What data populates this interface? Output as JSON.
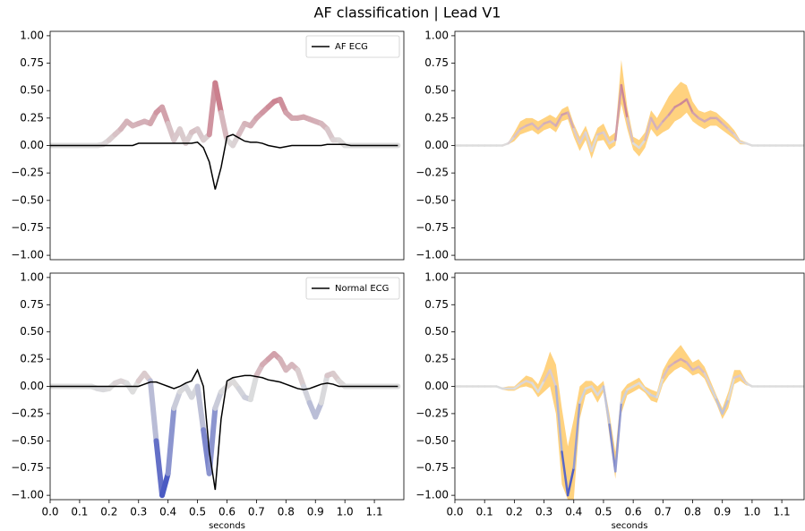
{
  "title": "AF classification | Lead V1",
  "chart_data": [
    {
      "type": "line",
      "xlim": [
        0,
        1.2
      ],
      "ylim": [
        -1.04,
        1.04
      ],
      "yticks": [
        {
          "value": 1,
          "label": "1.00"
        },
        {
          "value": 0.75,
          "label": "0.75"
        },
        {
          "value": 0.5,
          "label": "0.50"
        },
        {
          "value": 0.25,
          "label": "0.25"
        },
        {
          "value": 0,
          "label": "0.00"
        },
        {
          "value": -0.25,
          "label": "−0.25"
        },
        {
          "value": -0.5,
          "label": "−0.50"
        },
        {
          "value": -0.75,
          "label": "−0.75"
        },
        {
          "value": -1,
          "label": "−1.00"
        }
      ],
      "legend": "upper right",
      "x": [
        0,
        0.02,
        0.04,
        0.06,
        0.08,
        0.1,
        0.12,
        0.14,
        0.16,
        0.18,
        0.2,
        0.22,
        0.24,
        0.26,
        0.28,
        0.3,
        0.32,
        0.34,
        0.36,
        0.38,
        0.4,
        0.42,
        0.44,
        0.46,
        0.48,
        0.5,
        0.52,
        0.54,
        0.56,
        0.58,
        0.6,
        0.62,
        0.64,
        0.66,
        0.68,
        0.7,
        0.72,
        0.74,
        0.76,
        0.78,
        0.8,
        0.82,
        0.84,
        0.86,
        0.88,
        0.9,
        0.92,
        0.94,
        0.96,
        0.98,
        1,
        1.02,
        1.04,
        1.06,
        1.08,
        1.1,
        1.12,
        1.14,
        1.16,
        1.18
      ],
      "series": [
        {
          "colormap": "coolwarm",
          "values": [
            0,
            0,
            0,
            0,
            0,
            0,
            0,
            0,
            0,
            0.01,
            0.05,
            0.1,
            0.15,
            0.22,
            0.18,
            0.2,
            0.22,
            0.2,
            0.3,
            0.35,
            0.2,
            0.05,
            0.15,
            0.02,
            0.12,
            0.15,
            0.05,
            0.1,
            0.57,
            0.3,
            0.05,
            0,
            0.1,
            0.2,
            0.18,
            0.25,
            0.3,
            0.35,
            0.4,
            0.42,
            0.3,
            0.25,
            0.25,
            0.26,
            0.24,
            0.22,
            0.2,
            0.15,
            0.05,
            0.05,
            0,
            0,
            0,
            0,
            0,
            0,
            0,
            0,
            0,
            0
          ]
        },
        {
          "name": "AF ECG",
          "color": "#000000",
          "values": [
            0,
            0,
            0,
            0,
            0,
            0,
            0,
            0,
            0,
            0,
            0,
            0,
            0,
            0,
            0,
            0.02,
            0.02,
            0.02,
            0.02,
            0.02,
            0.02,
            0.02,
            0.02,
            0.02,
            0.02,
            0.03,
            -0.02,
            -0.15,
            -0.4,
            -0.2,
            0.08,
            0.1,
            0.07,
            0.04,
            0.03,
            0.03,
            0.02,
            0,
            -0.01,
            -0.02,
            -0.01,
            0,
            0,
            0,
            0,
            0,
            0,
            0.01,
            0.01,
            0.01,
            0.01,
            0,
            0,
            0,
            0,
            0,
            0,
            0,
            0,
            0
          ]
        }
      ]
    },
    {
      "type": "line",
      "xlim": [
        0,
        1.175
      ],
      "ylim": [
        -1.04,
        1.04
      ],
      "yticks": [
        {
          "value": 1,
          "label": "1.00"
        },
        {
          "value": 0.75,
          "label": "0.75"
        },
        {
          "value": 0.5,
          "label": "0.50"
        },
        {
          "value": 0.25,
          "label": "0.25"
        },
        {
          "value": 0,
          "label": "0.00"
        },
        {
          "value": -0.25,
          "label": "−0.25"
        },
        {
          "value": -0.5,
          "label": "−0.50"
        },
        {
          "value": -0.75,
          "label": "−0.75"
        },
        {
          "value": -1,
          "label": "−1.00"
        }
      ],
      "x": [
        0,
        0.02,
        0.04,
        0.06,
        0.08,
        0.1,
        0.12,
        0.14,
        0.16,
        0.18,
        0.2,
        0.22,
        0.24,
        0.26,
        0.28,
        0.3,
        0.32,
        0.34,
        0.36,
        0.38,
        0.4,
        0.42,
        0.44,
        0.46,
        0.48,
        0.5,
        0.52,
        0.54,
        0.56,
        0.58,
        0.6,
        0.62,
        0.64,
        0.66,
        0.68,
        0.7,
        0.72,
        0.74,
        0.76,
        0.78,
        0.8,
        0.82,
        0.84,
        0.86,
        0.88,
        0.9,
        0.92,
        0.94,
        0.96,
        0.98,
        1,
        1.02,
        1.04,
        1.06,
        1.08,
        1.1,
        1.12,
        1.14,
        1.16,
        1.18
      ],
      "series": [
        {
          "colormap": "coolwarm",
          "band_color": "#ffd27f",
          "values": [
            0,
            0,
            0,
            0,
            0,
            0,
            0,
            0,
            0,
            0.02,
            0.08,
            0.15,
            0.18,
            0.2,
            0.15,
            0.2,
            0.22,
            0.18,
            0.28,
            0.3,
            0.15,
            0.02,
            0.12,
            -0.05,
            0.1,
            0.12,
            0.02,
            0.05,
            0.55,
            0.25,
            0.02,
            -0.02,
            0.05,
            0.25,
            0.15,
            0.22,
            0.28,
            0.35,
            0.38,
            0.42,
            0.3,
            0.25,
            0.22,
            0.25,
            0.25,
            0.2,
            0.15,
            0.1,
            0.03,
            0.02,
            0,
            0,
            0,
            0,
            0,
            0,
            0,
            0,
            0,
            0
          ],
          "upper": [
            0,
            0,
            0,
            0,
            0,
            0,
            0,
            0,
            0,
            0.03,
            0.12,
            0.22,
            0.25,
            0.25,
            0.22,
            0.25,
            0.28,
            0.25,
            0.33,
            0.36,
            0.2,
            0.08,
            0.18,
            0.03,
            0.16,
            0.2,
            0.08,
            0.12,
            0.78,
            0.35,
            0.08,
            0.05,
            0.12,
            0.32,
            0.25,
            0.35,
            0.45,
            0.52,
            0.58,
            0.55,
            0.4,
            0.32,
            0.3,
            0.32,
            0.3,
            0.25,
            0.2,
            0.14,
            0.05,
            0.03,
            0,
            0,
            0,
            0,
            0,
            0,
            0,
            0,
            0,
            0
          ],
          "lower": [
            0,
            0,
            0,
            0,
            0,
            0,
            0,
            0,
            0,
            0.01,
            0.04,
            0.1,
            0.12,
            0.14,
            0.1,
            0.14,
            0.16,
            0.12,
            0.22,
            0.24,
            0.08,
            -0.05,
            0.05,
            -0.12,
            0.04,
            0.05,
            -0.04,
            0,
            0.38,
            0.15,
            -0.04,
            -0.1,
            -0.02,
            0.15,
            0.08,
            0.12,
            0.15,
            0.22,
            0.25,
            0.3,
            0.22,
            0.18,
            0.15,
            0.18,
            0.18,
            0.14,
            0.1,
            0.06,
            0.01,
            0.01,
            0,
            0,
            0,
            0,
            0,
            0,
            0,
            0,
            0,
            0
          ]
        }
      ]
    },
    {
      "type": "line",
      "xlim": [
        0,
        1.2
      ],
      "ylim": [
        -1.04,
        1.04
      ],
      "xlabel": "seconds",
      "xticks": [
        {
          "value": 0,
          "label": "0.0"
        },
        0.1,
        0.2,
        0.3,
        0.4,
        0.5,
        0.6,
        0.7,
        0.8,
        0.9,
        {
          "value": 1,
          "label": "1.0"
        },
        1.1
      ],
      "yticks": [
        {
          "value": 1,
          "label": "1.00"
        },
        {
          "value": 0.75,
          "label": "0.75"
        },
        {
          "value": 0.5,
          "label": "0.50"
        },
        {
          "value": 0.25,
          "label": "0.25"
        },
        {
          "value": 0,
          "label": "0.00"
        },
        {
          "value": -0.25,
          "label": "−0.25"
        },
        {
          "value": -0.5,
          "label": "−0.50"
        },
        {
          "value": -0.75,
          "label": "−0.75"
        },
        {
          "value": -1,
          "label": "−1.00"
        }
      ],
      "legend": "upper right",
      "x": [
        0,
        0.02,
        0.04,
        0.06,
        0.08,
        0.1,
        0.12,
        0.14,
        0.16,
        0.18,
        0.2,
        0.22,
        0.24,
        0.26,
        0.28,
        0.3,
        0.32,
        0.34,
        0.36,
        0.38,
        0.4,
        0.42,
        0.44,
        0.46,
        0.48,
        0.5,
        0.52,
        0.54,
        0.56,
        0.58,
        0.6,
        0.62,
        0.64,
        0.66,
        0.68,
        0.7,
        0.72,
        0.74,
        0.76,
        0.78,
        0.8,
        0.82,
        0.84,
        0.86,
        0.88,
        0.9,
        0.92,
        0.94,
        0.96,
        0.98,
        1,
        1.02,
        1.04,
        1.06,
        1.08,
        1.1,
        1.12,
        1.14,
        1.16,
        1.18
      ],
      "series": [
        {
          "colormap": "coolwarm",
          "values": [
            0,
            0,
            0,
            0,
            0,
            0,
            0,
            0,
            -0.02,
            -0.03,
            -0.02,
            0.03,
            0.05,
            0.03,
            -0.05,
            0.05,
            0.12,
            0.05,
            -0.5,
            -1,
            -0.8,
            -0.2,
            -0.05,
            0,
            -0.1,
            0,
            -0.4,
            -0.8,
            -0.2,
            -0.05,
            0,
            0.05,
            -0.02,
            -0.1,
            -0.12,
            0.1,
            0.2,
            0.25,
            0.3,
            0.25,
            0.15,
            0.2,
            0.15,
            0,
            -0.15,
            -0.28,
            -0.15,
            0.1,
            0.12,
            0.05,
            0,
            0,
            0,
            0,
            0,
            0,
            0,
            0,
            0,
            0
          ]
        },
        {
          "name": "Normal ECG",
          "color": "#000000",
          "values": [
            0,
            0,
            0,
            0,
            0,
            0,
            0,
            0,
            0,
            0,
            0,
            0,
            0,
            0,
            0,
            0,
            0.02,
            0.04,
            0.04,
            0.02,
            0,
            -0.02,
            0,
            0.03,
            0.05,
            0.15,
            0,
            -0.6,
            -0.95,
            -0.3,
            0.05,
            0.08,
            0.09,
            0.1,
            0.1,
            0.09,
            0.08,
            0.06,
            0.05,
            0.04,
            0.02,
            0,
            -0.02,
            -0.03,
            -0.02,
            0,
            0.02,
            0.03,
            0.02,
            0,
            0,
            0,
            0,
            0,
            0,
            0,
            0,
            0,
            0,
            0
          ]
        }
      ]
    },
    {
      "type": "line",
      "xlim": [
        0,
        1.175
      ],
      "ylim": [
        -1.04,
        1.04
      ],
      "xlabel": "seconds",
      "xticks": [
        {
          "value": 0,
          "label": "0.0"
        },
        0.1,
        0.2,
        0.3,
        0.4,
        0.5,
        0.6,
        0.7,
        0.8,
        0.9,
        {
          "value": 1,
          "label": "1.0"
        },
        1.1
      ],
      "yticks": [
        {
          "value": 1,
          "label": "1.00"
        },
        {
          "value": 0.75,
          "label": "0.75"
        },
        {
          "value": 0.5,
          "label": "0.50"
        },
        {
          "value": 0.25,
          "label": "0.25"
        },
        {
          "value": 0,
          "label": "0.00"
        },
        {
          "value": -0.25,
          "label": "−0.25"
        },
        {
          "value": -0.5,
          "label": "−0.50"
        },
        {
          "value": -0.75,
          "label": "−0.75"
        },
        {
          "value": -1,
          "label": "−1.00"
        }
      ],
      "x": [
        0,
        0.02,
        0.04,
        0.06,
        0.08,
        0.1,
        0.12,
        0.14,
        0.16,
        0.18,
        0.2,
        0.22,
        0.24,
        0.26,
        0.28,
        0.3,
        0.32,
        0.34,
        0.36,
        0.38,
        0.4,
        0.42,
        0.44,
        0.46,
        0.48,
        0.5,
        0.52,
        0.54,
        0.56,
        0.58,
        0.6,
        0.62,
        0.64,
        0.66,
        0.68,
        0.7,
        0.72,
        0.74,
        0.76,
        0.78,
        0.8,
        0.82,
        0.84,
        0.86,
        0.88,
        0.9,
        0.92,
        0.94,
        0.96,
        0.98,
        1,
        1.02,
        1.04,
        1.06,
        1.08,
        1.1,
        1.12,
        1.14,
        1.16,
        1.18
      ],
      "series": [
        {
          "colormap": "coolwarm",
          "band_color": "#ffd27f",
          "values": [
            0,
            0,
            0,
            0,
            0,
            0,
            0,
            0,
            -0.02,
            -0.02,
            -0.02,
            0.02,
            0.05,
            0.03,
            -0.05,
            0.05,
            0.15,
            0,
            -0.6,
            -1,
            -0.75,
            -0.15,
            -0.02,
            0,
            -0.08,
            0,
            -0.35,
            -0.78,
            -0.15,
            -0.03,
            0,
            0.03,
            -0.03,
            -0.08,
            -0.1,
            0.08,
            0.18,
            0.22,
            0.25,
            0.22,
            0.15,
            0.18,
            0.12,
            0,
            -0.12,
            -0.25,
            -0.12,
            0.08,
            0.1,
            0.03,
            0,
            0,
            0,
            0,
            0,
            0,
            0,
            0,
            0,
            0
          ],
          "upper": [
            0,
            0,
            0,
            0,
            0,
            0,
            0,
            0,
            -0.01,
            0,
            0,
            0.05,
            0.1,
            0.08,
            0.02,
            0.15,
            0.32,
            0.2,
            -0.2,
            -0.55,
            -0.3,
            0,
            0.05,
            0.05,
            0,
            0.05,
            -0.25,
            -0.6,
            -0.05,
            0.02,
            0.05,
            0.08,
            0,
            -0.03,
            -0.05,
            0.15,
            0.25,
            0.32,
            0.38,
            0.3,
            0.22,
            0.25,
            0.18,
            0.05,
            -0.08,
            -0.2,
            -0.05,
            0.15,
            0.15,
            0.05,
            0,
            0,
            0,
            0,
            0,
            0,
            0,
            0,
            0,
            0
          ],
          "lower": [
            0,
            0,
            0,
            0,
            0,
            0,
            0,
            0,
            -0.03,
            -0.04,
            -0.04,
            -0.01,
            0,
            -0.02,
            -0.1,
            -0.05,
            0,
            -0.25,
            -0.9,
            -1.04,
            -1.04,
            -0.3,
            -0.08,
            -0.05,
            -0.15,
            -0.05,
            -0.45,
            -0.85,
            -0.25,
            -0.08,
            -0.05,
            -0.02,
            -0.06,
            -0.13,
            -0.15,
            0.02,
            0.1,
            0.15,
            0.18,
            0.15,
            0.1,
            0.12,
            0.07,
            -0.05,
            -0.16,
            -0.3,
            -0.2,
            0.02,
            0.05,
            0.01,
            0,
            0,
            0,
            0,
            0,
            0,
            0,
            0,
            0,
            0
          ]
        }
      ]
    }
  ]
}
